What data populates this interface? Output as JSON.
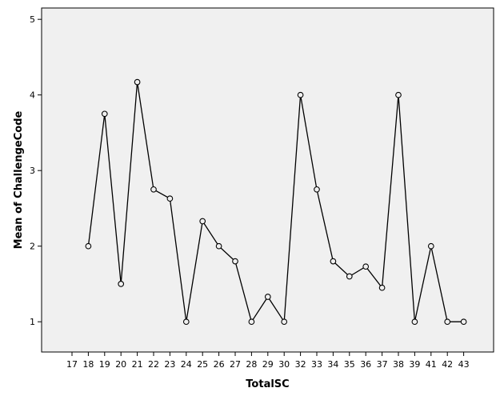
{
  "chart_data": {
    "type": "line",
    "title": "",
    "xlabel": "TotalSC",
    "ylabel": "Mean of ChallengeCode",
    "categories": [
      "17",
      "18",
      "19",
      "20",
      "21",
      "22",
      "23",
      "24",
      "25",
      "26",
      "27",
      "28",
      "29",
      "30",
      "32",
      "33",
      "34",
      "35",
      "36",
      "37",
      "38",
      "39",
      "41",
      "42",
      "43"
    ],
    "series": [
      {
        "values": [
          null,
          2.0,
          3.75,
          1.5,
          4.17,
          2.75,
          2.63,
          1.0,
          2.33,
          2.0,
          1.8,
          1.0,
          1.33,
          1.0,
          4.0,
          2.75,
          1.8,
          1.6,
          1.73,
          1.45,
          4.0,
          1.0,
          2.0,
          1.0,
          1.0
        ]
      }
    ],
    "yticks": [
      1,
      2,
      3,
      4,
      5
    ],
    "ylim": [
      0.6,
      5.15
    ],
    "grid": false,
    "colors": {
      "plot_background": "#f0f0f0",
      "line": "#000000",
      "marker_fill": "#f0f0f0",
      "axis": "#000000"
    }
  }
}
